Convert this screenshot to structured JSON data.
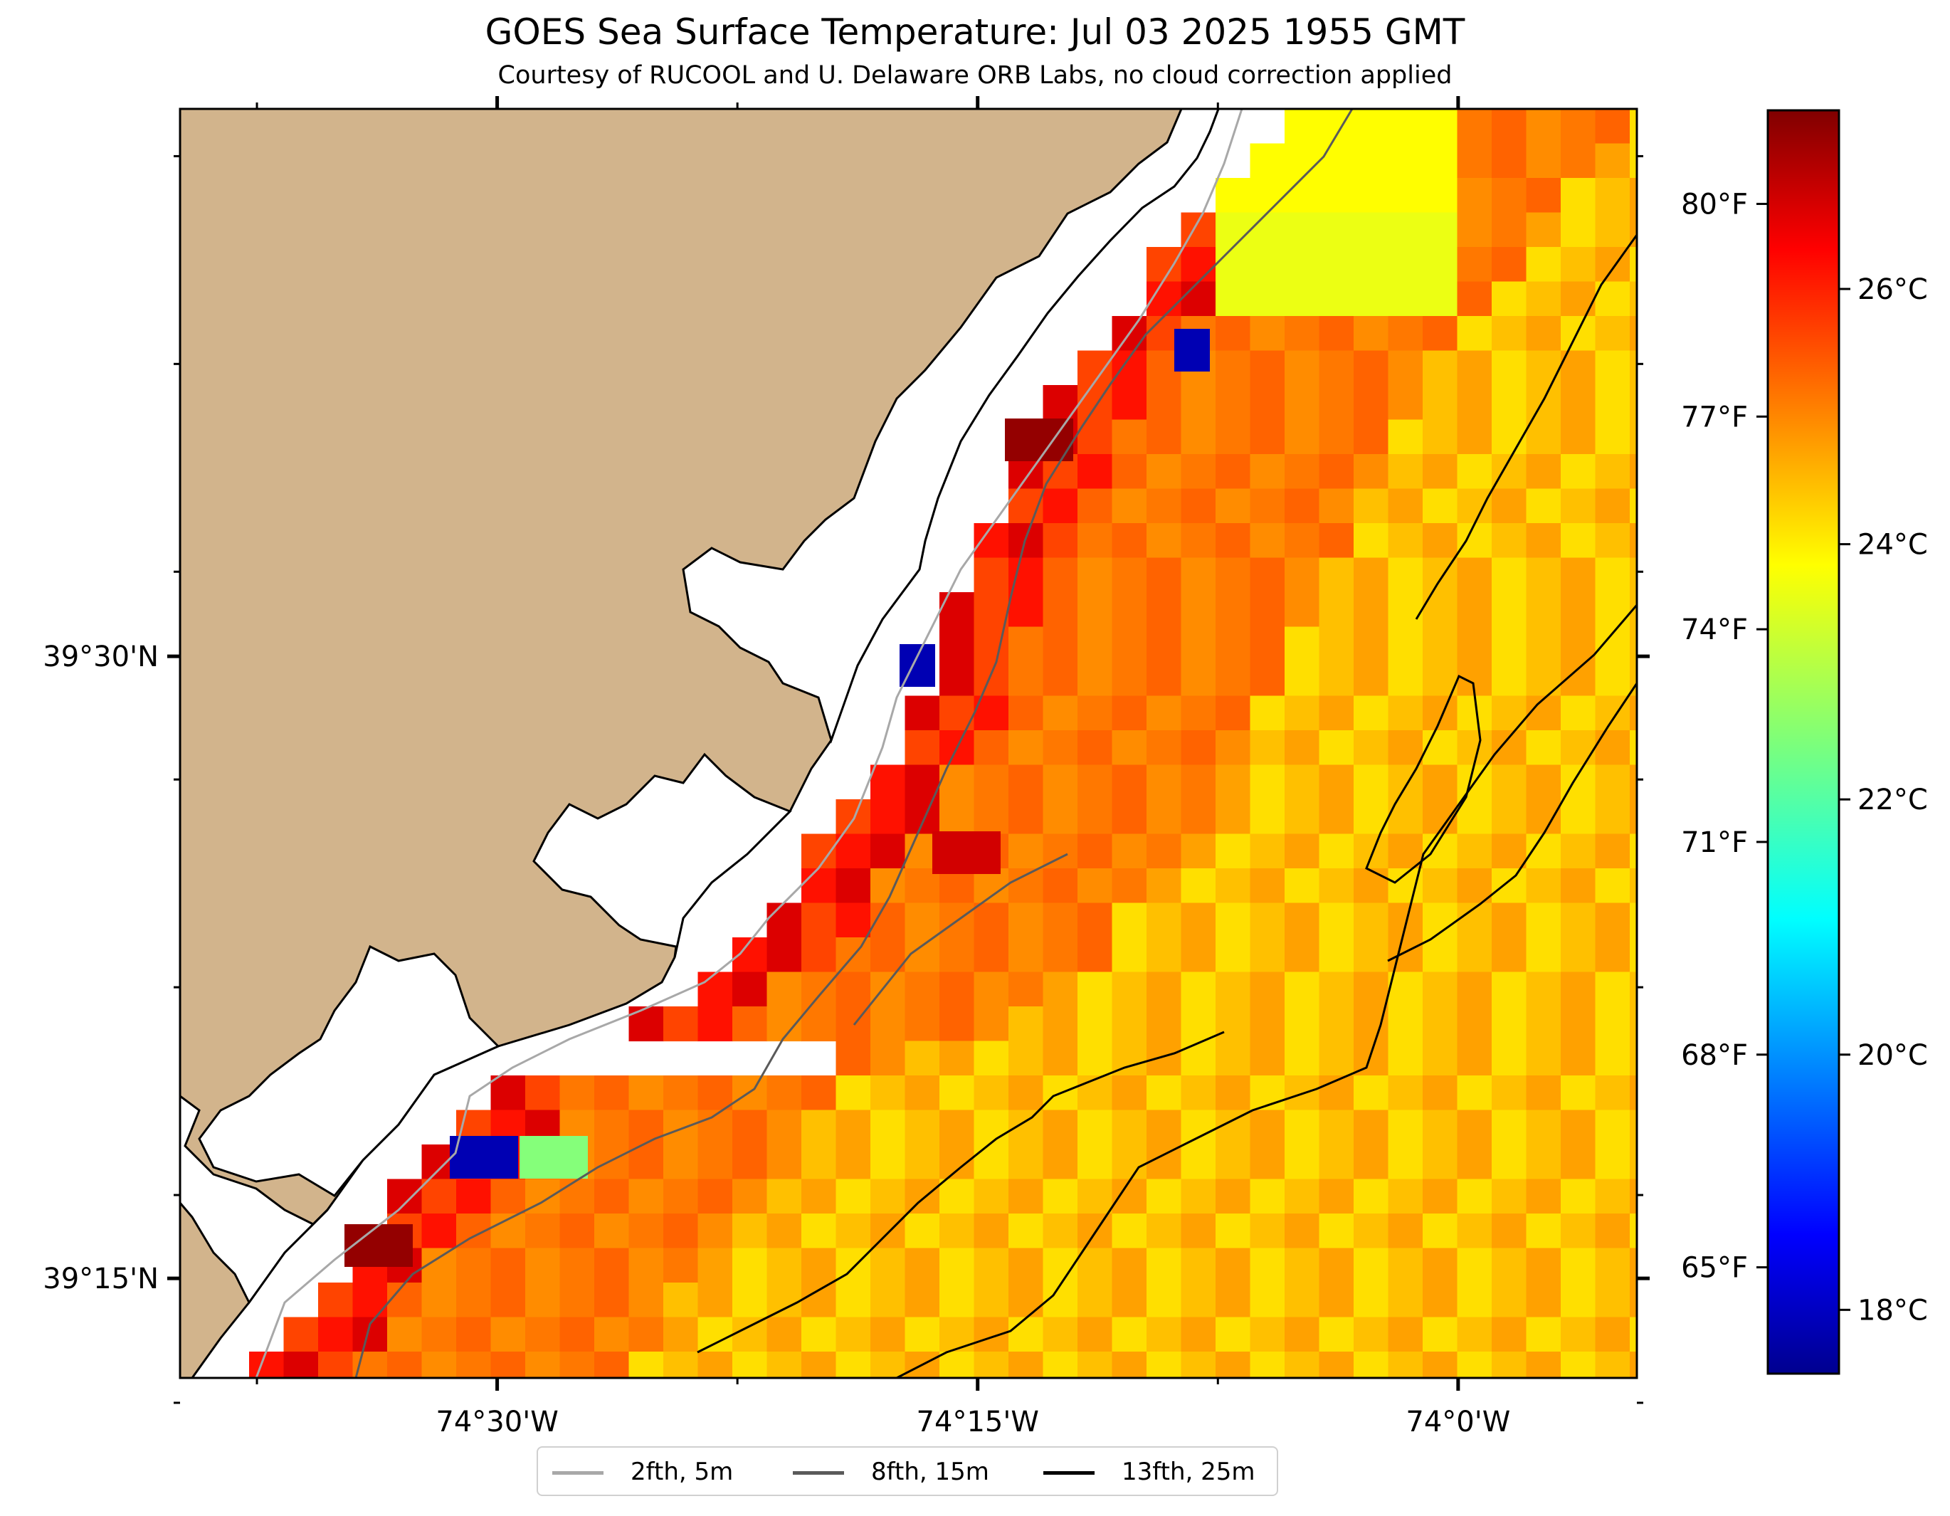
{
  "title": "GOES Sea Surface Temperature: Jul 03 2025 1955 GMT",
  "subtitle": "Courtesy of RUCOOL and U. Delaware ORB Labs, no cloud correction applied",
  "axes": {
    "lon_ticks": [
      {
        "lon": -74.5,
        "label": "74°30'W"
      },
      {
        "lon": -74.25,
        "label": "74°15'W"
      },
      {
        "lon": -74.0,
        "label": "74°0'W"
      }
    ],
    "lat_ticks": [
      {
        "lat": 39.5,
        "label": "39°30'N"
      },
      {
        "lat": 39.25,
        "label": "39°15'N"
      }
    ],
    "lon_range": [
      -74.665,
      -73.907
    ],
    "lat_range": [
      39.21,
      39.72
    ]
  },
  "colorbar": {
    "colormap": "jet",
    "range_c": [
      17.5,
      27.4
    ],
    "celsius_ticks": [
      {
        "value": 18,
        "label": "18°C"
      },
      {
        "value": 20,
        "label": "20°C"
      },
      {
        "value": 22,
        "label": "22°C"
      },
      {
        "value": 24,
        "label": "24°C"
      },
      {
        "value": 26,
        "label": "26°C"
      }
    ],
    "fahrenheit_ticks": [
      {
        "value": 65,
        "label": "65°F"
      },
      {
        "value": 68,
        "label": "68°F"
      },
      {
        "value": 71,
        "label": "71°F"
      },
      {
        "value": 74,
        "label": "74°F"
      },
      {
        "value": 77,
        "label": "77°F"
      },
      {
        "value": 80,
        "label": "80°F"
      }
    ]
  },
  "legend": {
    "items": [
      {
        "label": "2fth, 5m",
        "color": "#a8a8a8"
      },
      {
        "label": "8fth, 15m",
        "color": "#5a5a5a"
      },
      {
        "label": "13fth, 25m",
        "color": "#000000"
      }
    ]
  },
  "colors": {
    "land": "#d2b48c",
    "coastline": "#000000",
    "no_data": "#ffffff"
  },
  "chart_data": {
    "type": "heatmap",
    "title": "GOES Sea Surface Temperature: Jul 03 2025 1955 GMT",
    "units": "°C",
    "notes_visible": "no cloud correction applied",
    "value_range": [
      17.5,
      27.4
    ],
    "anomalous_cells_c": [
      18,
      18,
      18,
      22.5,
      27.2,
      27.2,
      27.2,
      26.6
    ],
    "nearshore_band_c": [
      25.5,
      26.0,
      26.5
    ],
    "inner_shelf_c": [
      24.8,
      25.0,
      25.2
    ],
    "offshore_c": [
      24.0,
      24.3,
      24.6
    ],
    "northeast_cool_patch_c": [
      23.5,
      23.7
    ]
  }
}
